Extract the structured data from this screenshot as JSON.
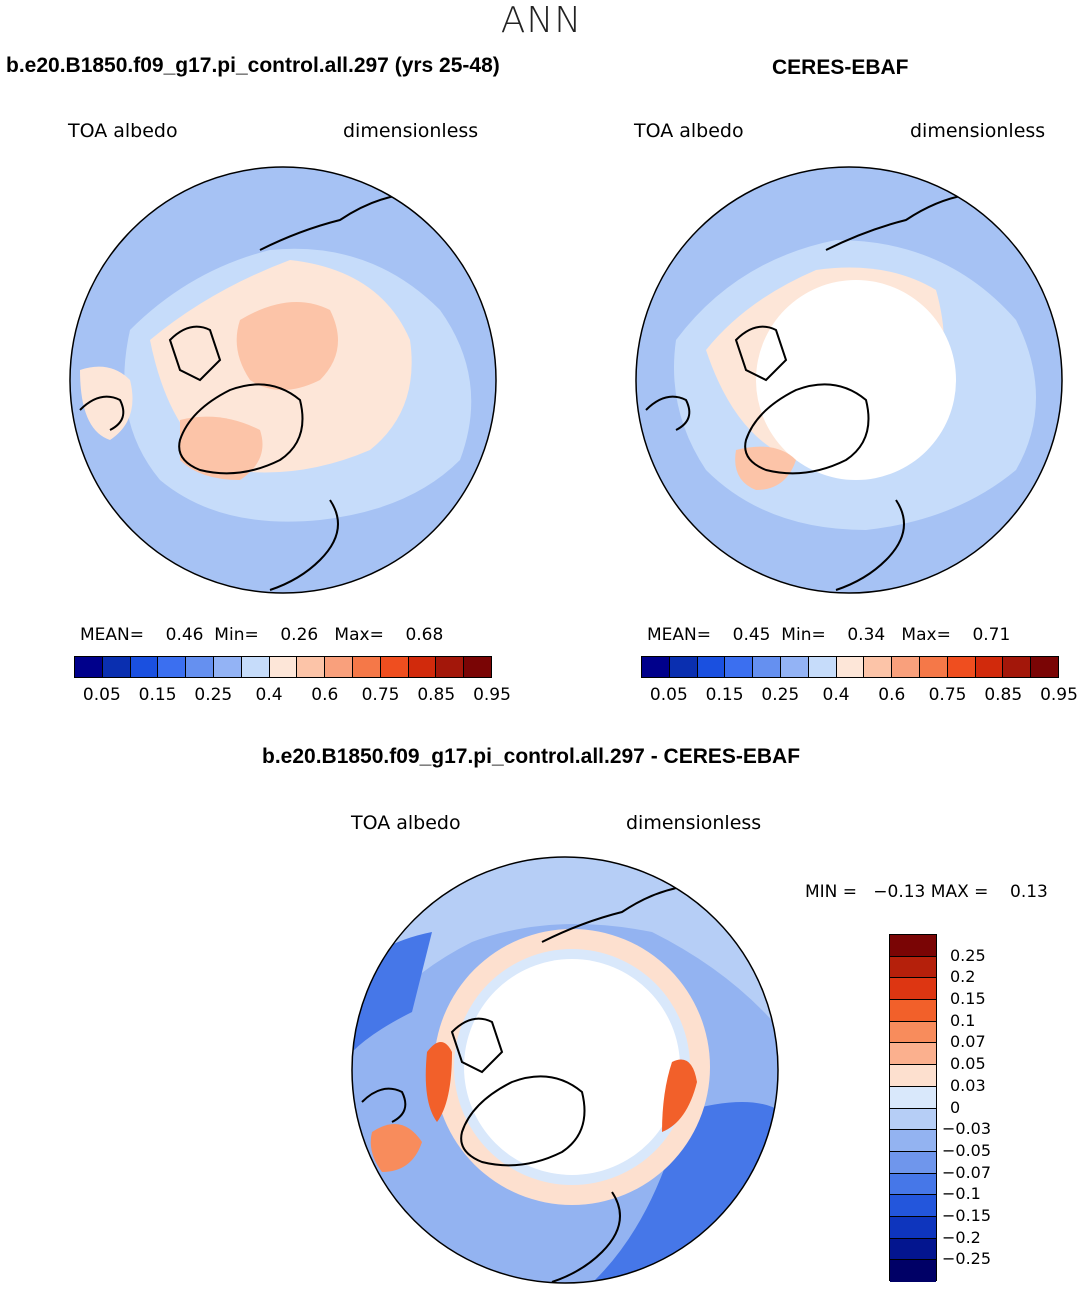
{
  "super_title": "ANN",
  "panels": {
    "model": {
      "title": "b.e20.B1850.f09_g17.pi_control.all.297 (yrs 25-48)",
      "left_label": "TOA albedo",
      "right_label": "dimensionless",
      "mean_label": "MEAN=",
      "mean_value": "0.46",
      "min_label": "Min=",
      "min_value": "0.26",
      "max_label": "Max=",
      "max_value": "0.68"
    },
    "obs": {
      "title": "CERES-EBAF",
      "left_label": "TOA albedo",
      "right_label": "dimensionless",
      "mean_label": "MEAN=",
      "mean_value": "0.45",
      "min_label": "Min=",
      "min_value": "0.34",
      "max_label": "Max=",
      "max_value": "0.71"
    },
    "diff": {
      "title": "b.e20.B1850.f09_g17.pi_control.all.297 - CERES-EBAF",
      "left_label": "TOA albedo",
      "right_label": "dimensionless",
      "min_label": "MIN =",
      "min_value": "−0.13",
      "max_label": "MAX =",
      "max_value": "0.13"
    }
  },
  "colorbar_abs": {
    "colors": [
      "#00008b",
      "#0a2fb0",
      "#1a50e0",
      "#3b6ff0",
      "#6590f0",
      "#93b3f5",
      "#c6dcfa",
      "#fde6d8",
      "#fcc4a8",
      "#f9a07c",
      "#f57848",
      "#ef4e1f",
      "#d12a0c",
      "#a3170a",
      "#7a0505"
    ],
    "tick_labels": [
      "0.05",
      "0.15",
      "0.25",
      "0.4",
      "0.6",
      "0.75",
      "0.85",
      "0.95"
    ]
  },
  "colorbar_diff": {
    "colors": [
      "#7a0505",
      "#b5200b",
      "#dd3612",
      "#f2602a",
      "#f88c5c",
      "#fbb08e",
      "#fde0cf",
      "#d9e8fb",
      "#b6cef6",
      "#93b3f1",
      "#6f96ec",
      "#4677e8",
      "#2356dc",
      "#0e35bd",
      "#03158f",
      "#000066"
    ],
    "tick_labels": [
      "0.25",
      "0.2",
      "0.15",
      "0.1",
      "0.07",
      "0.05",
      "0.03",
      "0",
      "−0.03",
      "−0.05",
      "−0.07",
      "−0.1",
      "−0.15",
      "−0.2",
      "−0.25"
    ]
  }
}
